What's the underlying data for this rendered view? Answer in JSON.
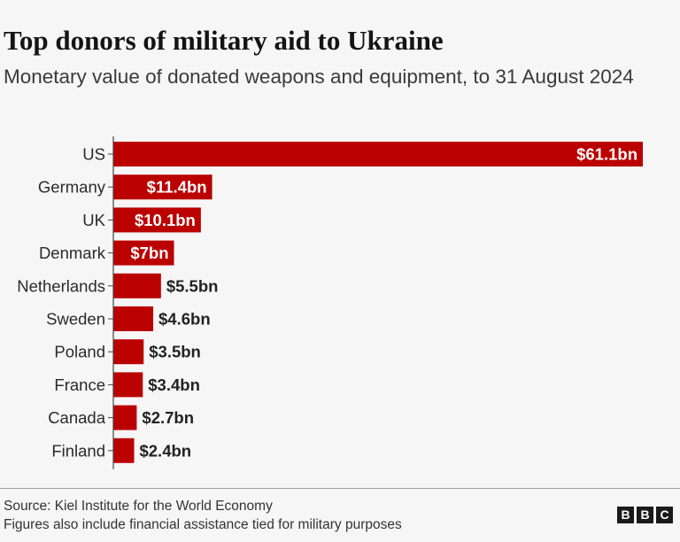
{
  "chart_data": {
    "type": "bar",
    "orientation": "horizontal",
    "title": "Top donors of military aid to Ukraine",
    "subtitle": "Monetary value of donated weapons and equipment, to 31 August 2024",
    "categories": [
      "US",
      "Germany",
      "UK",
      "Denmark",
      "Netherlands",
      "Sweden",
      "Poland",
      "France",
      "Canada",
      "Finland"
    ],
    "values": [
      61.1,
      11.4,
      10.1,
      7,
      5.5,
      4.6,
      3.5,
      3.4,
      2.7,
      2.4
    ],
    "value_labels": [
      "$61.1bn",
      "$11.4bn",
      "$10.1bn",
      "$7bn",
      "$5.5bn",
      "$4.6bn",
      "$3.5bn",
      "$3.4bn",
      "$2.7bn",
      "$2.4bn"
    ],
    "unit": "$bn",
    "xlim": [
      0,
      61.1
    ],
    "bar_color": "#bb0000",
    "grid": false
  },
  "footer": {
    "source": "Source: Kiel Institute for the World Economy",
    "note": "Figures also include financial assistance tied for military purposes",
    "logo_letters": [
      "B",
      "B",
      "C"
    ]
  }
}
